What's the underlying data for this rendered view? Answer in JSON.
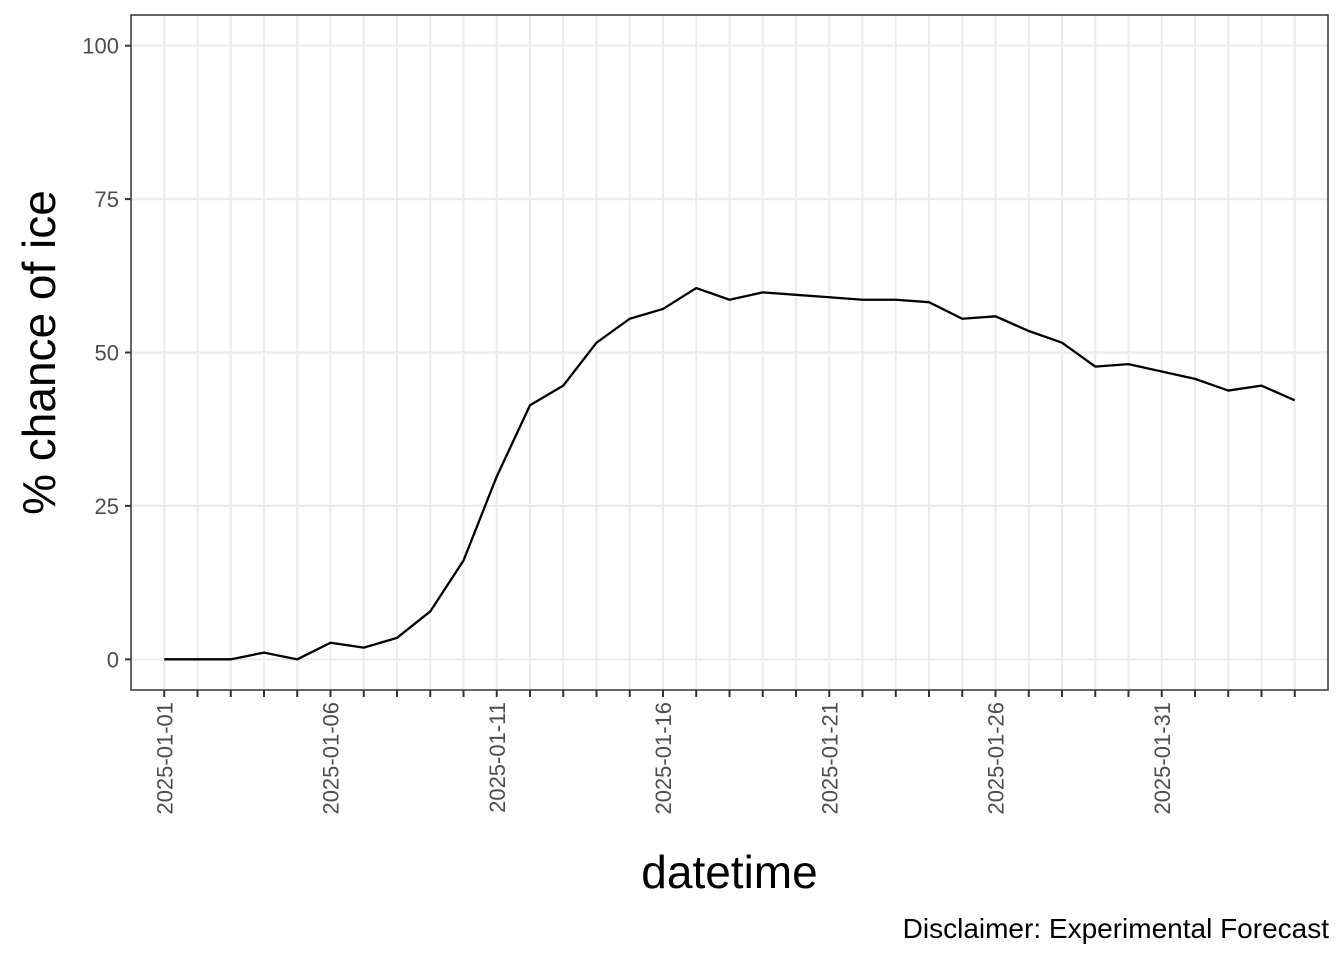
{
  "chart_data": {
    "type": "line",
    "xlabel": "datetime",
    "ylabel": "% chance of ice",
    "caption": "Disclaimer: Experimental Forecast",
    "x": [
      "2025-01-01",
      "2025-01-02",
      "2025-01-03",
      "2025-01-04",
      "2025-01-05",
      "2025-01-06",
      "2025-01-07",
      "2025-01-08",
      "2025-01-09",
      "2025-01-10",
      "2025-01-11",
      "2025-01-12",
      "2025-01-13",
      "2025-01-14",
      "2025-01-15",
      "2025-01-16",
      "2025-01-17",
      "2025-01-18",
      "2025-01-19",
      "2025-01-20",
      "2025-01-21",
      "2025-01-22",
      "2025-01-23",
      "2025-01-24",
      "2025-01-25",
      "2025-01-26",
      "2025-01-27",
      "2025-01-28",
      "2025-01-29",
      "2025-01-30",
      "2025-01-31",
      "2025-02-01",
      "2025-02-02",
      "2025-02-03",
      "2025-02-04"
    ],
    "series": [
      {
        "values": [
          0.0,
          0.0,
          0.0,
          1.1,
          0.0,
          2.7,
          1.9,
          3.5,
          7.8,
          16.1,
          29.8,
          41.4,
          44.6,
          51.6,
          55.5,
          57.1,
          60.5,
          58.6,
          59.8,
          59.4,
          59.0,
          58.6,
          58.6,
          58.2,
          55.5,
          55.9,
          53.5,
          51.6,
          47.7,
          48.1,
          46.9,
          45.7,
          43.8,
          44.6,
          42.2
        ]
      }
    ],
    "xticks": [
      "2025-01-01",
      "2025-01-06",
      "2025-01-11",
      "2025-01-16",
      "2025-01-21",
      "2025-01-26",
      "2025-01-31"
    ],
    "yticks": [
      0,
      25,
      50,
      75,
      100
    ],
    "xlim": [
      "2024-12-31",
      "2025-02-05"
    ],
    "ylim": [
      -5,
      105
    ],
    "grid": true,
    "line_color": "#000000",
    "grid_color": "#ebebeb",
    "panel_border_color": "#333333"
  }
}
